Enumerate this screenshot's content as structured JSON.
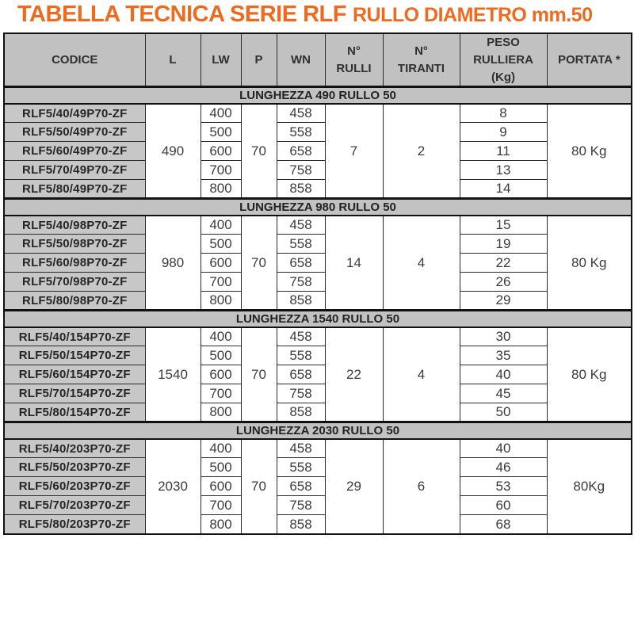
{
  "title": {
    "main": "TABELLA TECNICA SERIE RLF",
    "sub": "RULLO DIAMETRO mm.50"
  },
  "colors": {
    "accent": "#EE6A1F",
    "header_bg": "#C1C1C1",
    "banner_bg": "#C2C2C2",
    "code_bg": "#C7C7C7"
  },
  "table": {
    "headers": [
      "CODICE",
      "L",
      "LW",
      "P",
      "WN",
      "N°\nRULLI",
      "N°\nTIRANTI",
      "PESO\nRULLIERA\n(Kg)",
      "PORTATA *"
    ],
    "sections": [
      {
        "banner": "LUNGHEZZA 490 RULLO 50",
        "l": "490",
        "p": "70",
        "rulli": "7",
        "tiranti": "2",
        "portata": "80 Kg",
        "rows": [
          {
            "codice": "RLF5/40/49P70-ZF",
            "lw": "400",
            "wn": "458",
            "peso": "8"
          },
          {
            "codice": "RLF5/50/49P70-ZF",
            "lw": "500",
            "wn": "558",
            "peso": "9"
          },
          {
            "codice": "RLF5/60/49P70-ZF",
            "lw": "600",
            "wn": "658",
            "peso": "11"
          },
          {
            "codice": "RLF5/70/49P70-ZF",
            "lw": "700",
            "wn": "758",
            "peso": "13"
          },
          {
            "codice": "RLF5/80/49P70-ZF",
            "lw": "800",
            "wn": "858",
            "peso": "14"
          }
        ]
      },
      {
        "banner": "LUNGHEZZA 980 RULLO 50",
        "l": "980",
        "p": "70",
        "rulli": "14",
        "tiranti": "4",
        "portata": "80 Kg",
        "rows": [
          {
            "codice": "RLF5/40/98P70-ZF",
            "lw": "400",
            "wn": "458",
            "peso": "15"
          },
          {
            "codice": "RLF5/50/98P70-ZF",
            "lw": "500",
            "wn": "558",
            "peso": "19"
          },
          {
            "codice": "RLF5/60/98P70-ZF",
            "lw": "600",
            "wn": "658",
            "peso": "22"
          },
          {
            "codice": "RLF5/70/98P70-ZF",
            "lw": "700",
            "wn": "758",
            "peso": "26"
          },
          {
            "codice": "RLF5/80/98P70-ZF",
            "lw": "800",
            "wn": "858",
            "peso": "29"
          }
        ]
      },
      {
        "banner": "LUNGHEZZA 1540 RULLO 50",
        "l": "1540",
        "p": "70",
        "rulli": "22",
        "tiranti": "4",
        "portata": "80 Kg",
        "rows": [
          {
            "codice": "RLF5/40/154P70-ZF",
            "lw": "400",
            "wn": "458",
            "peso": "30"
          },
          {
            "codice": "RLF5/50/154P70-ZF",
            "lw": "500",
            "wn": "558",
            "peso": "35"
          },
          {
            "codice": "RLF5/60/154P70-ZF",
            "lw": "600",
            "wn": "658",
            "peso": "40"
          },
          {
            "codice": "RLF5/70/154P70-ZF",
            "lw": "700",
            "wn": "758",
            "peso": "45"
          },
          {
            "codice": "RLF5/80/154P70-ZF",
            "lw": "800",
            "wn": "858",
            "peso": "50"
          }
        ]
      },
      {
        "banner": "LUNGHEZZA 2030 RULLO 50",
        "l": "2030",
        "p": "70",
        "rulli": "29",
        "tiranti": "6",
        "portata": "80Kg",
        "rows": [
          {
            "codice": "RLF5/40/203P70-ZF",
            "lw": "400",
            "wn": "458",
            "peso": "40"
          },
          {
            "codice": "RLF5/50/203P70-ZF",
            "lw": "500",
            "wn": "558",
            "peso": "46"
          },
          {
            "codice": "RLF5/60/203P70-ZF",
            "lw": "600",
            "wn": "658",
            "peso": "53"
          },
          {
            "codice": "RLF5/70/203P70-ZF",
            "lw": "700",
            "wn": "758",
            "peso": "60"
          },
          {
            "codice": "RLF5/80/203P70-ZF",
            "lw": "800",
            "wn": "858",
            "peso": "68"
          }
        ]
      }
    ]
  }
}
